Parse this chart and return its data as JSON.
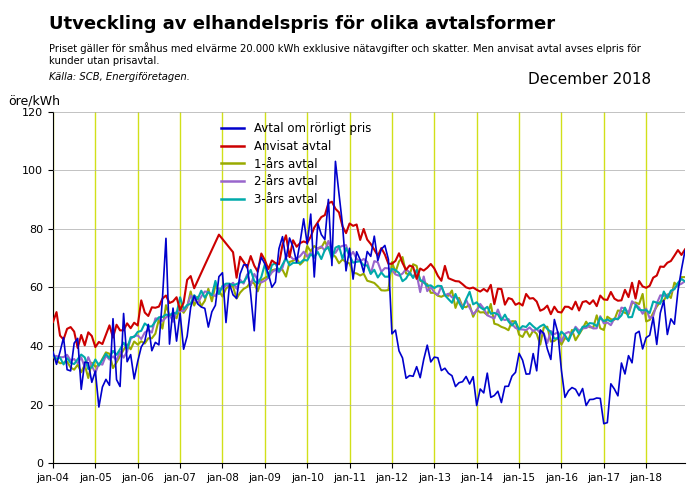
{
  "title": "Utveckling av elhandelspris för olika avtalsformer",
  "subtitle": "Priset gäller för småhus med elvärme 20.000 kWh exklusive nätavgifter och skatter. Men anvisat avtal avses elpris för\nkunder utan prisavtal.",
  "source": "Källa: SCB, Energiföretagen.",
  "date_label": "December 2018",
  "ylabel": "öre/kWh",
  "ylim": [
    0,
    120
  ],
  "yticks": [
    0,
    20,
    40,
    60,
    80,
    100,
    120
  ],
  "colors": {
    "rorligt": "#0000CC",
    "anvisat": "#CC0000",
    "ett_ar": "#99AA00",
    "tva_ar": "#9966CC",
    "tre_ar": "#00AAAA",
    "vertical_lines": "#CCDD00"
  },
  "legend_entries": [
    "Avtal om rörligt pris",
    "Anvisat avtal",
    "1-års avtal",
    "2-års avtal",
    "3-års avtal"
  ]
}
